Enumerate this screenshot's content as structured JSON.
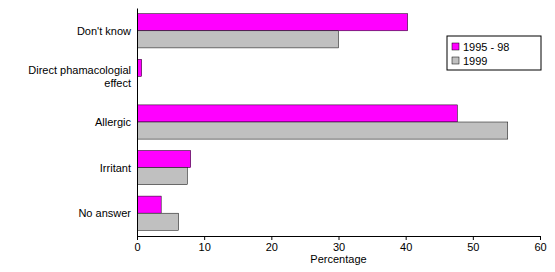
{
  "chart_data": {
    "type": "bar",
    "orientation": "horizontal",
    "categories": [
      "Don't know",
      "Direct phamacologial effect",
      "Allergic",
      "Irritant",
      "No answer"
    ],
    "series": [
      {
        "name": "1995 - 98",
        "color": "#ff00ff",
        "values": [
          40.3,
          0.7,
          47.7,
          8.0,
          3.6
        ]
      },
      {
        "name": "1999",
        "color": "#c0c0c0",
        "values": [
          30.0,
          0.0,
          55.2,
          7.5,
          6.2
        ]
      }
    ],
    "xlabel": "Percentage",
    "xlim": [
      0,
      60
    ],
    "xticks": [
      0,
      10,
      20,
      30,
      40,
      50,
      60
    ],
    "grid": false,
    "legend": "top-right"
  }
}
